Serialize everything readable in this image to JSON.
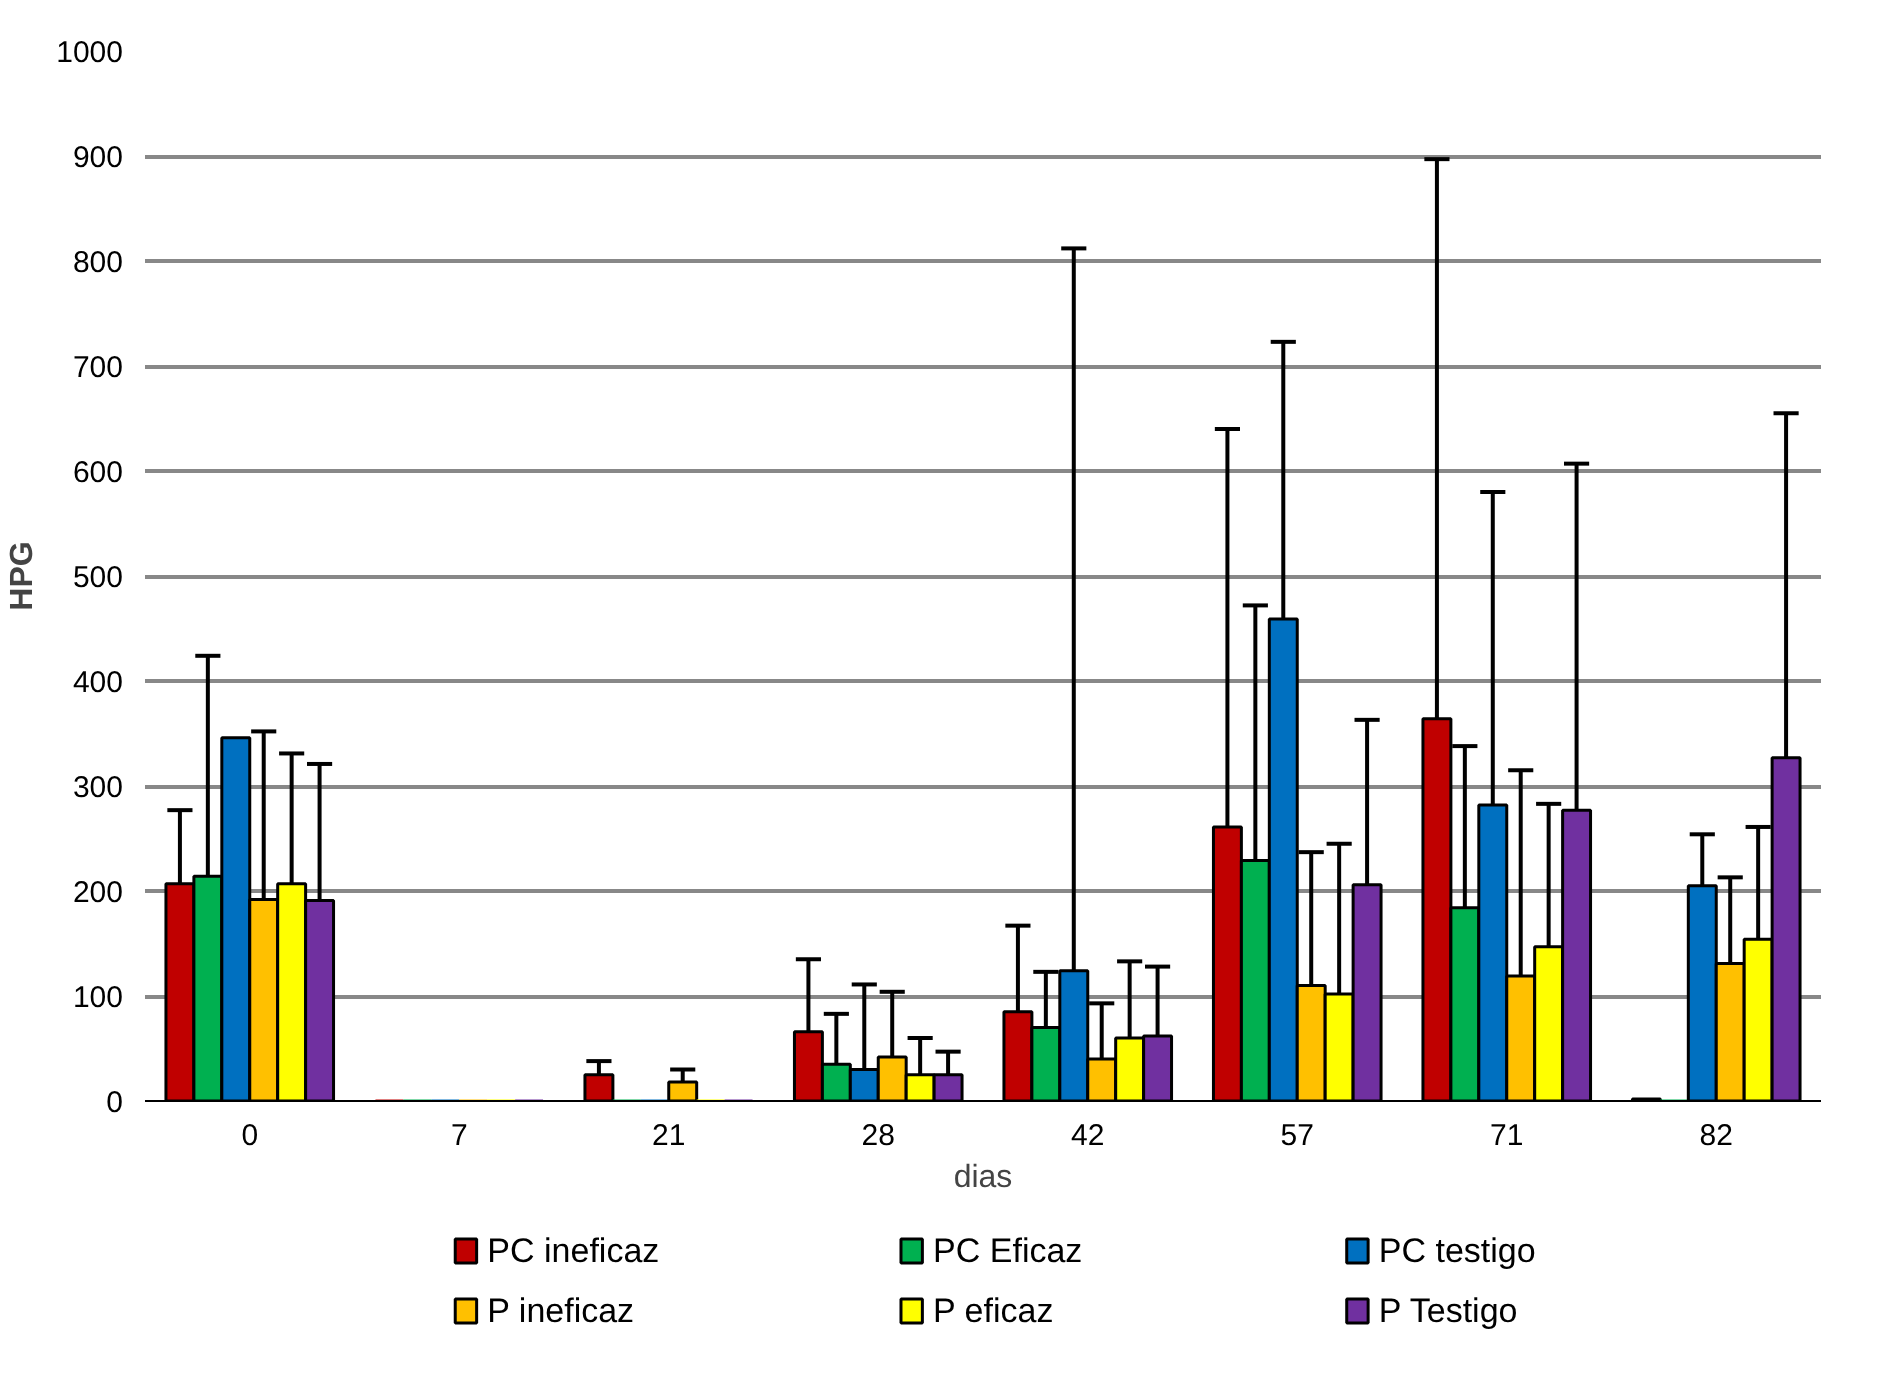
{
  "chart_data": {
    "type": "bar",
    "xlabel": "dias",
    "ylabel": "HPG",
    "categories": [
      "0",
      "7",
      "21",
      "28",
      "42",
      "57",
      "71",
      "82"
    ],
    "ylim": [
      0,
      1000
    ],
    "yticks": [
      0,
      100,
      200,
      300,
      400,
      500,
      600,
      700,
      800,
      900,
      1000
    ],
    "grid": "y",
    "legend": "bottom",
    "series": [
      {
        "name": "PC ineficaz",
        "color": "#c00000",
        "values": [
          207,
          0,
          25,
          66,
          85,
          261,
          364,
          2
        ],
        "errors": [
          [
            207,
            277
          ],
          null,
          [
            25,
            38
          ],
          [
            66,
            135
          ],
          [
            85,
            167
          ],
          [
            261,
            640
          ],
          [
            364,
            897
          ],
          null
        ]
      },
      {
        "name": "PC  Eficaz",
        "color": "#00b050",
        "values": [
          214,
          0,
          0,
          35,
          70,
          229,
          184,
          0
        ],
        "errors": [
          [
            214,
            424
          ],
          null,
          null,
          [
            35,
            83
          ],
          [
            70,
            123
          ],
          [
            229,
            472
          ],
          [
            184,
            338
          ],
          null
        ]
      },
      {
        "name": "PC  testigo",
        "color": "#0070c0",
        "values": [
          346,
          0,
          0,
          30,
          124,
          459,
          282,
          205
        ],
        "errors": [
          null,
          null,
          null,
          [
            30,
            111
          ],
          [
            124,
            812
          ],
          [
            459,
            723
          ],
          [
            282,
            580
          ],
          [
            205,
            254
          ]
        ]
      },
      {
        "name": "P  ineficaz",
        "color": "#ffc000",
        "values": [
          192,
          0,
          18,
          42,
          40,
          110,
          119,
          131
        ],
        "errors": [
          [
            192,
            352
          ],
          null,
          [
            18,
            30
          ],
          [
            42,
            104
          ],
          [
            40,
            93
          ],
          [
            110,
            237
          ],
          [
            119,
            315
          ],
          [
            131,
            213
          ]
        ]
      },
      {
        "name": "P  eficaz",
        "color": "#ffff00",
        "values": [
          207,
          0,
          0,
          25,
          60,
          102,
          147,
          154
        ],
        "errors": [
          [
            207,
            331
          ],
          null,
          null,
          [
            25,
            60
          ],
          [
            60,
            133
          ],
          [
            102,
            245
          ],
          [
            147,
            283
          ],
          [
            154,
            261
          ]
        ]
      },
      {
        "name": "P  Testigo",
        "color": "#7030a0",
        "values": [
          191,
          0,
          0,
          25,
          62,
          206,
          277,
          327
        ],
        "errors": [
          [
            191,
            321
          ],
          null,
          null,
          [
            25,
            47
          ],
          [
            62,
            128
          ],
          [
            206,
            363
          ],
          [
            277,
            607
          ],
          [
            327,
            655
          ]
        ]
      }
    ]
  }
}
